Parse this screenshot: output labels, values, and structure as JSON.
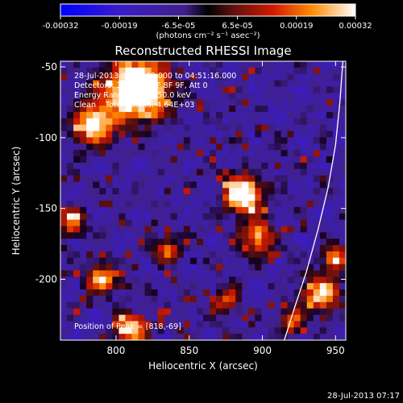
{
  "chart_data": {
    "type": "heatmap",
    "title": "Reconstructed RHESSI Image",
    "xlabel": "Heliocentric X (arcsec)",
    "ylabel": "Heliocentric Y (arcsec)",
    "xlim": [
      762,
      957
    ],
    "ylim": [
      -243,
      -46
    ],
    "xticks": [
      800,
      850,
      900,
      950
    ],
    "yticks": [
      -50,
      -100,
      -150,
      -200
    ],
    "colorbar": {
      "ticks": [
        "-0.00032",
        "-0.00019",
        "-6.5e-05",
        "6.5e-05",
        "0.00019",
        "0.00032"
      ],
      "range": [
        -0.00032,
        0.00032
      ],
      "units": "(photons cm⁻² s⁻¹ asec⁻²)"
    },
    "annotations": {
      "time_range": "28-Jul-2013 04:48:48.000 to 04:51:16.000",
      "detectors": "Detectors: 3F 5F 6F 7F 8F 9F, Att 0",
      "energy": "Energy Range: 25.0 - 50.0 keV",
      "method": "Clean    Total counts: 4.64E+03",
      "peak": "Position of Peak = [818,-69]"
    },
    "peak": {
      "x": 818,
      "y": -69
    },
    "hot_spots": [
      {
        "x": 815,
        "y": -65,
        "a": 1.0,
        "r": 14
      },
      {
        "x": 785,
        "y": -90,
        "a": 0.7,
        "r": 10
      },
      {
        "x": 887,
        "y": -140,
        "a": 0.85,
        "r": 9
      },
      {
        "x": 897,
        "y": -170,
        "a": 0.55,
        "r": 8
      },
      {
        "x": 790,
        "y": -200,
        "a": 0.6,
        "r": 7
      },
      {
        "x": 810,
        "y": -235,
        "a": 0.65,
        "r": 7
      },
      {
        "x": 940,
        "y": -210,
        "a": 0.6,
        "r": 9
      },
      {
        "x": 950,
        "y": -185,
        "a": 0.55,
        "r": 6
      },
      {
        "x": 875,
        "y": -215,
        "a": 0.45,
        "r": 6
      },
      {
        "x": 835,
        "y": -180,
        "a": 0.45,
        "r": 6
      },
      {
        "x": 770,
        "y": -160,
        "a": 0.5,
        "r": 6
      },
      {
        "x": 920,
        "y": -230,
        "a": 0.45,
        "r": 6
      }
    ],
    "limb": {
      "x": [
        915,
        922,
        930,
        938,
        945,
        950,
        953,
        955
      ],
      "y": [
        -243,
        -220,
        -195,
        -165,
        -135,
        -105,
        -75,
        -46
      ]
    }
  },
  "footer": {
    "timestamp": "28-Jul-2013 07:17"
  }
}
